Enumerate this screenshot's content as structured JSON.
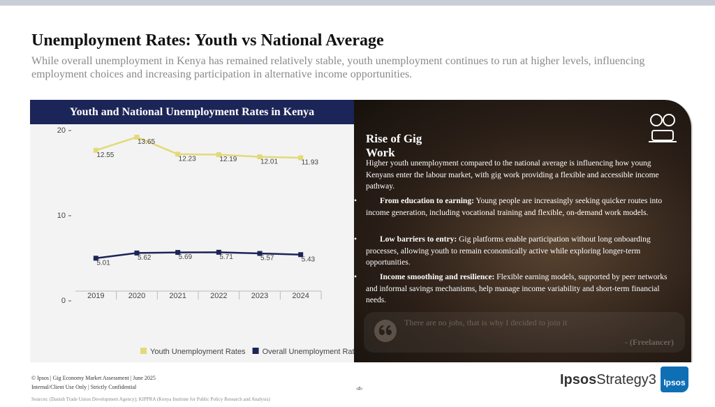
{
  "header": {
    "title": "Unemployment Rates: Youth vs National Average",
    "subtitle": "While overall unemployment in Kenya has remained relatively stable, youth unemployment continues to run at higher levels, influencing employment choices and increasing participation in alternative income opportunities."
  },
  "chart_data": {
    "type": "line",
    "title": "Youth and National Unemployment Rates in Kenya",
    "categories": [
      "2019",
      "2020",
      "2021",
      "2022",
      "2023",
      "2024"
    ],
    "series": [
      {
        "name": "Youth Unemployment Rates",
        "color": "#e2da78",
        "axis": "y2",
        "values": [
          12.55,
          13.65,
          12.23,
          12.19,
          12.01,
          11.93
        ]
      },
      {
        "name": "Overall Unemployment Rate",
        "color": "#1c2557",
        "values": [
          5.01,
          5.62,
          5.69,
          5.71,
          5.57,
          5.43
        ]
      }
    ],
    "ylim": [
      0,
      20
    ],
    "yticks": [
      0,
      10,
      20
    ],
    "y2lim": [
      0,
      14.2
    ],
    "legend": "bottom"
  },
  "panel": {
    "heading": "Rise of Gig Work",
    "intro": "Higher youth unemployment compared to the national average is influencing how young Kenyans enter the labour market, with gig work providing a flexible and accessible income pathway.",
    "bullets": [
      {
        "lead": "From education to earning:",
        "text": "Young people are increasingly seeking quicker routes into income generation, including vocational training and flexible, on-demand work models."
      },
      {
        "lead": "Low barriers to entry:",
        "text": "Gig platforms enable participation without long onboarding processes, allowing youth to remain economically active while exploring longer-term opportunities."
      },
      {
        "lead": "Income smoothing and resilience:",
        "text": "Flexible earning models, supported by peer networks and informal savings mechanisms, help manage income variability and short-term financial needs."
      }
    ],
    "quote": "There are no jobs, that is why I decided to join it",
    "attribution": "- (Freelancer)"
  },
  "footer": {
    "copyright": "© Ipsos | Gig Economy Market Assessment | June 2025",
    "confidential": "Internal/Client Use Only | Strictly Confidential",
    "page": "‹#›",
    "sources": "Sources: (Danish Trade Union Development Agency); KIPPRA (Kenya Institute for Public Policy Research and Analysis)",
    "brand": "Ipsos",
    "brand_suffix": "Strategy3",
    "badge": "Ipsos"
  }
}
